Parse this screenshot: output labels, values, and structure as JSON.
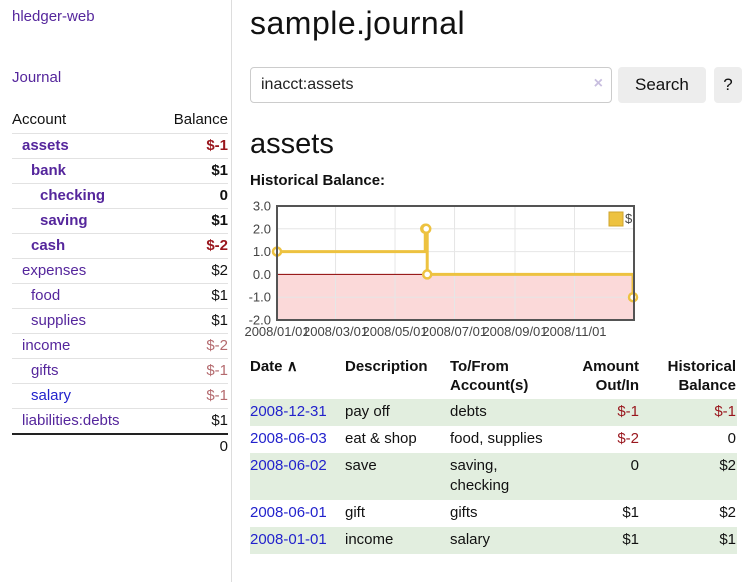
{
  "app": {
    "title": "hledger-web"
  },
  "sidebar": {
    "journal_link": "Journal",
    "table": {
      "headers": {
        "account": "Account",
        "balance": "Balance"
      },
      "rows": [
        {
          "account": "assets",
          "balance": "$-1",
          "depth": 1,
          "bold": true,
          "neg": "neg"
        },
        {
          "account": "bank",
          "balance": "$1",
          "depth": 2,
          "bold": true,
          "neg": ""
        },
        {
          "account": "checking",
          "balance": "0",
          "depth": 3,
          "bold": true,
          "neg": ""
        },
        {
          "account": "saving",
          "balance": "$1",
          "depth": 3,
          "bold": true,
          "neg": ""
        },
        {
          "account": "cash",
          "balance": "$-2",
          "depth": 2,
          "bold": true,
          "neg": "neg"
        },
        {
          "account": "expenses",
          "balance": "$2",
          "depth": 1,
          "bold": false,
          "neg": ""
        },
        {
          "account": "food",
          "balance": "$1",
          "depth": 2,
          "bold": false,
          "neg": ""
        },
        {
          "account": "supplies",
          "balance": "$1",
          "depth": 2,
          "bold": false,
          "neg": ""
        },
        {
          "account": "income",
          "balance": "$-2",
          "depth": 1,
          "bold": false,
          "neg": "negm"
        },
        {
          "account": "gifts",
          "balance": "$-1",
          "depth": 2,
          "bold": false,
          "neg": "negm"
        },
        {
          "account": "salary",
          "balance": "$-1",
          "depth": 2,
          "bold": false,
          "neg": "negm",
          "link_color": "blue"
        },
        {
          "account": "liabilities:debts",
          "balance": "$1",
          "depth": 1,
          "bold": false,
          "neg": ""
        }
      ],
      "total": "0"
    }
  },
  "main": {
    "title": "sample.journal",
    "search": {
      "value": "inacct:assets",
      "clear_icon": "×",
      "button": "Search",
      "help_button": "?"
    },
    "account_heading": "assets",
    "chart_heading": "Historical Balance:"
  },
  "chart_data": {
    "type": "line",
    "step": true,
    "title": "Historical Balance",
    "series": [
      {
        "name": "$",
        "color": "#edc240",
        "points": [
          [
            "2008-01-01",
            1
          ],
          [
            "2008-06-01",
            2
          ],
          [
            "2008-06-02",
            2
          ],
          [
            "2008-06-03",
            0
          ],
          [
            "2008-12-31",
            -1
          ]
        ]
      }
    ],
    "x_range": [
      "2008-01-01",
      "2009-01-01"
    ],
    "ylim": [
      -2,
      3
    ],
    "y_ticks": [
      3.0,
      2.0,
      1.0,
      0.0,
      -1.0,
      -2.0
    ],
    "x_ticks": [
      "2008/01/01",
      "2008/03/01",
      "2008/05/01",
      "2008/07/01",
      "2008/09/01",
      "2008/11/01"
    ],
    "legend": {
      "label": "$",
      "position": "top-right"
    },
    "grid": true,
    "negative_region_color": "#fbd9d9",
    "zero_line_color": "#8b0000",
    "border_color": "#545454"
  },
  "register": {
    "headers": [
      "Date",
      "Description",
      "To/From Account(s)",
      "Amount Out/In",
      "Historical Balance"
    ],
    "sort_icon": "∧",
    "rows": [
      {
        "date": "2008-12-31",
        "description": "pay off",
        "accounts": "debts",
        "amount": "$-1",
        "amount_neg": true,
        "balance": "$-1",
        "balance_neg": true,
        "striped": true
      },
      {
        "date": "2008-06-03",
        "description": "eat & shop",
        "accounts": "food, supplies",
        "amount": "$-2",
        "amount_neg": true,
        "balance": "0",
        "balance_neg": false,
        "striped": false
      },
      {
        "date": "2008-06-02",
        "description": "save",
        "accounts": "saving, checking",
        "amount": "0",
        "amount_neg": false,
        "balance": "$2",
        "balance_neg": false,
        "striped": true
      },
      {
        "date": "2008-06-01",
        "description": "gift",
        "accounts": "gifts",
        "amount": "$1",
        "amount_neg": false,
        "balance": "$2",
        "balance_neg": false,
        "striped": false
      },
      {
        "date": "2008-01-01",
        "description": "income",
        "accounts": "salary",
        "amount": "$1",
        "amount_neg": false,
        "balance": "$1",
        "balance_neg": false,
        "striped": true
      }
    ]
  },
  "colors": {
    "link_purple": "#55269c",
    "link_blue": "#2222cc",
    "negative_strong": "#99161d",
    "negative_muted": "#b46a6e",
    "row_stripe_green": "#e2eedf",
    "chart_series_yellow": "#edc240",
    "chart_negative_bg": "#fbd9d9",
    "chart_zero_line": "#8b0000",
    "button_bg": "#ededed"
  }
}
